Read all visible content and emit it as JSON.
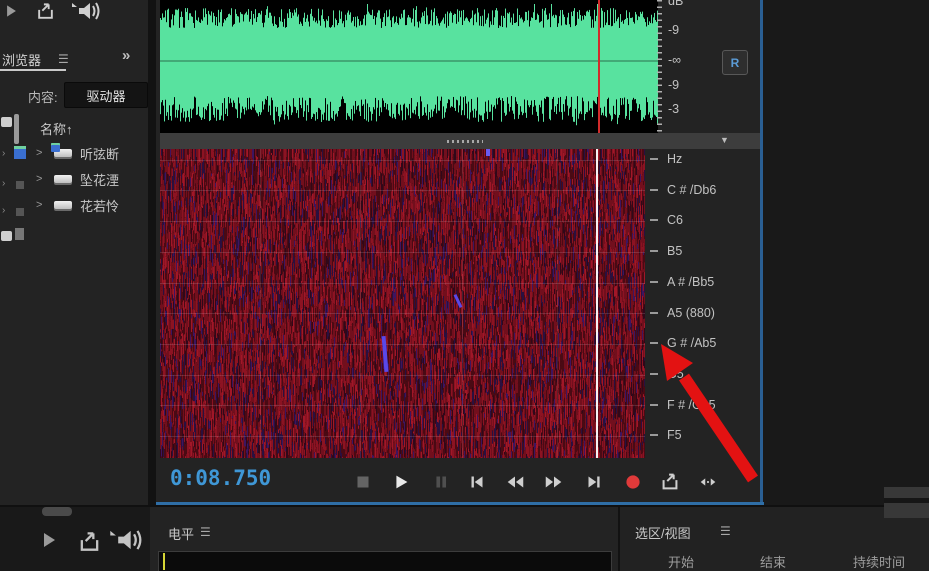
{
  "colors": {
    "timecode_blue": "#3f97d6",
    "waveform_green": "#58e29f",
    "record_red": "#e03a3a",
    "arrow_red": "#e31212",
    "channel_badge_blue": "#5b9bd5",
    "meter_yellow": "#d6d636",
    "panel_focus_blue": "#2f6ea6"
  },
  "browser": {
    "toolbar_icons": [
      "play-icon",
      "loop-playback-icon",
      "auto-play-speaker-icon"
    ],
    "tab_label": "浏览器",
    "panel_menu_glyph": "☰",
    "expand_glyph": "»",
    "content_label": "内容:",
    "content_value": "驱动器",
    "name_header": "名称",
    "sort_glyph": "↑",
    "row_chevron_glyph": ">",
    "files": [
      {
        "name": "听弦断"
      },
      {
        "name": "坠花湮"
      },
      {
        "name": "花若怜"
      }
    ],
    "bottom_icons": [
      "play-icon",
      "loop-playback-icon",
      "auto-play-speaker-icon"
    ]
  },
  "editor": {
    "db_scale": {
      "labels": [
        "dB",
        "-9",
        "-∞",
        "-9",
        "-3"
      ]
    },
    "channel_badge": "R",
    "divider_caret": "▼",
    "pitch_scale": {
      "labels": [
        "Hz",
        "C # /Db6",
        "C6",
        "B5",
        "A # /Bb5",
        "A5 (880)",
        "G # /Ab5",
        "G5",
        "F # /Gb5",
        "F5"
      ]
    },
    "timecode": "0:08.750",
    "transport_icons": [
      "stop",
      "play",
      "pause",
      "go-to-start",
      "rewind",
      "fast-forward",
      "go-to-end",
      "record",
      "loop-playback",
      "skip-selection"
    ]
  },
  "levels": {
    "title": "电平",
    "panel_menu_glyph": "☰"
  },
  "selection": {
    "title": "选区/视图",
    "panel_menu_glyph": "☰",
    "columns": [
      "开始",
      "结束",
      "持续时间"
    ]
  }
}
